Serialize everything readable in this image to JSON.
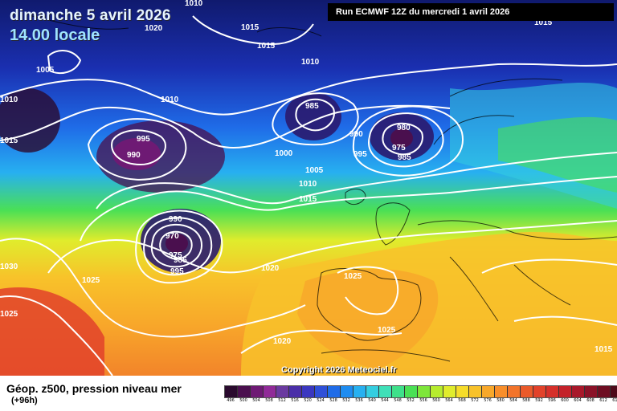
{
  "title": {
    "date": "dimanche 5 avril 2026",
    "time": "14.00 locale"
  },
  "run_info": "Run ECMWF 12Z du mercredi 1 avril 2026",
  "copyright": "Copyright 2026 Meteociel.fr",
  "caption": {
    "main": "Géop. z500, pression niveau mer",
    "lead": "(+96h)"
  },
  "legend": {
    "colors": [
      "#2a0a2e",
      "#4a0f4e",
      "#6e1a74",
      "#902a98",
      "#6a3aa0",
      "#4a2ea8",
      "#3a37c0",
      "#2f50d8",
      "#1f6ce8",
      "#1e8cf0",
      "#27b0f0",
      "#34cee0",
      "#3fe0b8",
      "#3ee08a",
      "#4ae055",
      "#7ee63a",
      "#b6ec2e",
      "#e0ec2c",
      "#f6dc2a",
      "#f8c22a",
      "#f8a82a",
      "#f88e2a",
      "#f2742a",
      "#ea5a2a",
      "#e2422a",
      "#d6302a",
      "#c4222a",
      "#a8182a",
      "#8a1228",
      "#6e0e22",
      "#4e0a1a",
      "#111111"
    ],
    "labels": [
      "496",
      "500",
      "504",
      "508",
      "512",
      "516",
      "520",
      "524",
      "528",
      "532",
      "536",
      "540",
      "544",
      "548",
      "552",
      "556",
      "560",
      "564",
      "568",
      "572",
      "576",
      "580",
      "584",
      "588",
      "592",
      "596",
      "600",
      "604",
      "608",
      "612",
      "616",
      ""
    ]
  },
  "pressure_labels": [
    "1010",
    "1020",
    "1015",
    "1015",
    "1005",
    "1010",
    "1010",
    "1015",
    "1010",
    "995",
    "990",
    "985",
    "990",
    "980",
    "975",
    "985",
    "995",
    "1000",
    "1005",
    "1010",
    "1015",
    "990",
    "970",
    "975",
    "985",
    "995",
    "1020",
    "1025",
    "1030",
    "1025",
    "1020",
    "1025",
    "1025",
    "1015",
    "1015"
  ]
}
